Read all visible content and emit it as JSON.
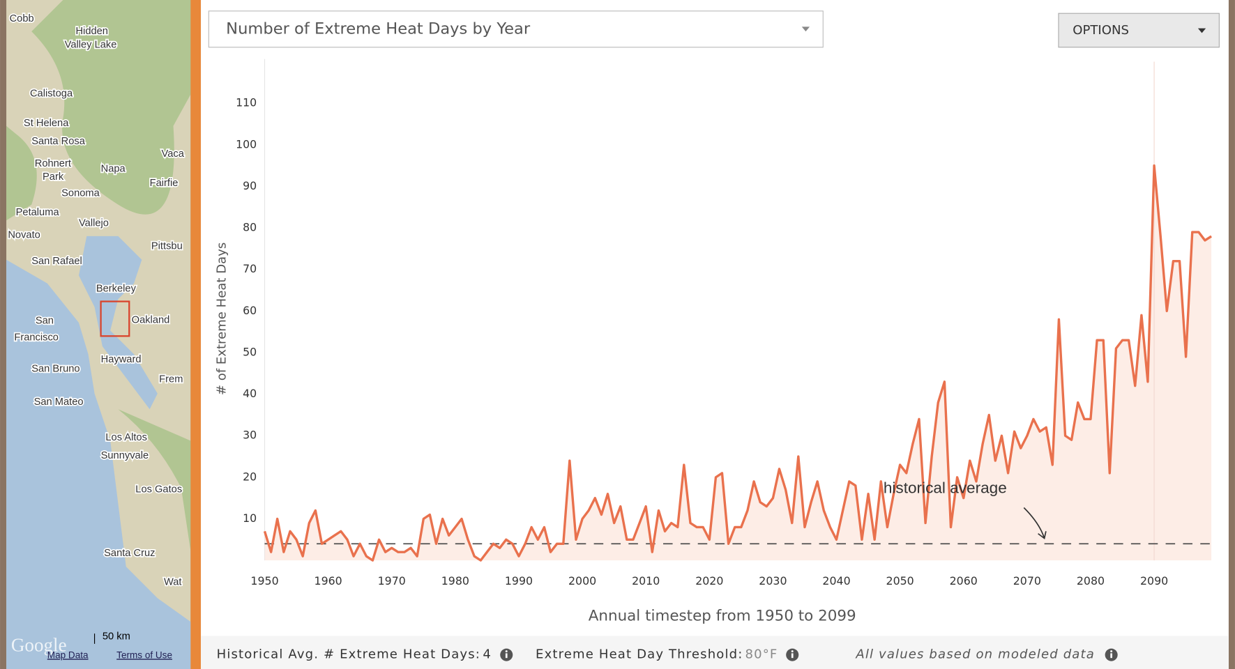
{
  "header": {
    "selector": "Number of Extreme Heat Days by Year",
    "options": "OPTIONS"
  },
  "map": {
    "labels": [
      "Cobb",
      "Hidden",
      "Valley Lake",
      "Calistoga",
      "St Helena",
      "Santa Rosa",
      "Rohnert",
      "Park",
      "Napa",
      "Vaca",
      "Fairfie",
      "Sonoma",
      "Petaluma",
      "Vallejo",
      "Novato",
      "Pittsbu",
      "San Rafael",
      "Berkeley",
      "San",
      "Francisco",
      "Oakland",
      "San Bruno",
      "Hayward",
      "Frem",
      "San Mateo",
      "Los Altos",
      "Sunnyvale",
      "Los Gatos",
      "Santa Cruz",
      "Wat"
    ],
    "scale": "50 km",
    "brand": "Google",
    "map_data": "Map Data",
    "terms": "Terms of Use"
  },
  "chart_data": {
    "type": "line",
    "y_label": "# of Extreme Heat Days",
    "x_label": "Annual timestep from 1950 to 2099",
    "annotation": "historical average",
    "x": [
      1950,
      1951,
      1952,
      1953,
      1954,
      1955,
      1956,
      1957,
      1958,
      1959,
      1960,
      1961,
      1962,
      1963,
      1964,
      1965,
      1966,
      1967,
      1968,
      1969,
      1970,
      1971,
      1972,
      1973,
      1974,
      1975,
      1976,
      1977,
      1978,
      1979,
      1980,
      1981,
      1982,
      1983,
      1984,
      1985,
      1986,
      1987,
      1988,
      1989,
      1990,
      1991,
      1992,
      1993,
      1994,
      1995,
      1996,
      1997,
      1998,
      1999,
      2000,
      2001,
      2002,
      2003,
      2004,
      2005,
      2006,
      2007,
      2008,
      2009,
      2010,
      2011,
      2012,
      2013,
      2014,
      2015,
      2016,
      2017,
      2018,
      2019,
      2020,
      2021,
      2022,
      2023,
      2024,
      2025,
      2026,
      2027,
      2028,
      2029,
      2030,
      2031,
      2032,
      2033,
      2034,
      2035,
      2036,
      2037,
      2038,
      2039,
      2040,
      2041,
      2042,
      2043,
      2044,
      2045,
      2046,
      2047,
      2048,
      2049,
      2050,
      2051,
      2052,
      2053,
      2054,
      2055,
      2056,
      2057,
      2058,
      2059,
      2060,
      2061,
      2062,
      2063,
      2064,
      2065,
      2066,
      2067,
      2068,
      2069,
      2070,
      2071,
      2072,
      2073,
      2074,
      2075,
      2076,
      2077,
      2078,
      2079,
      2080,
      2081,
      2082,
      2083,
      2084,
      2085,
      2086,
      2087,
      2088,
      2089,
      2090,
      2091,
      2092,
      2093,
      2094,
      2095,
      2096,
      2097,
      2098,
      2099
    ],
    "series": [
      {
        "color": "#e9714d",
        "values": [
          7,
          2,
          10,
          2,
          7,
          5,
          1,
          9,
          12,
          4,
          5,
          6,
          7,
          5,
          1,
          4,
          1,
          0,
          5,
          2,
          3,
          2,
          2,
          3,
          1,
          10,
          11,
          4,
          10,
          6,
          8,
          10,
          5,
          1,
          0,
          2,
          4,
          3,
          5,
          4,
          1,
          4,
          8,
          5,
          8,
          2,
          4,
          4,
          24,
          5,
          10,
          12,
          15,
          11,
          16,
          9,
          13,
          5,
          5,
          9,
          13,
          2,
          12,
          7,
          9,
          8,
          23,
          9,
          8,
          8,
          5,
          20,
          21,
          4,
          8,
          8,
          12,
          19,
          14,
          13,
          15,
          22,
          17,
          9,
          25,
          8,
          14,
          19,
          12,
          8,
          5,
          12,
          19,
          18,
          5,
          16,
          5,
          19,
          8,
          16,
          23,
          21,
          28,
          34,
          9,
          25,
          38,
          43,
          8,
          20,
          15,
          24,
          19,
          28,
          35,
          24,
          30,
          21,
          31,
          27,
          30,
          34,
          31,
          32,
          23,
          58,
          30,
          29,
          38,
          34,
          34,
          53,
          53,
          21,
          51,
          53,
          53,
          42,
          59,
          43,
          95,
          78,
          60,
          72,
          72,
          49,
          79,
          79,
          77,
          78
        ]
      }
    ],
    "area_color": "#fde8e0",
    "xlim": [
      1950,
      2099
    ],
    "ylim": [
      0,
      120
    ],
    "xticks": [
      1950,
      1960,
      1970,
      1980,
      1990,
      2000,
      2010,
      2020,
      2030,
      2040,
      2050,
      2060,
      2070,
      2080,
      2090
    ],
    "yticks": [
      10,
      20,
      30,
      40,
      50,
      60,
      70,
      80,
      90,
      100,
      110
    ]
  },
  "footer": {
    "hist_label": "Historical Avg. # Extreme Heat Days:",
    "hist_value": 4,
    "threshold_label": "Extreme Heat Day Threshold:",
    "threshold_value": "80°F",
    "note": "All values based on modeled data"
  }
}
